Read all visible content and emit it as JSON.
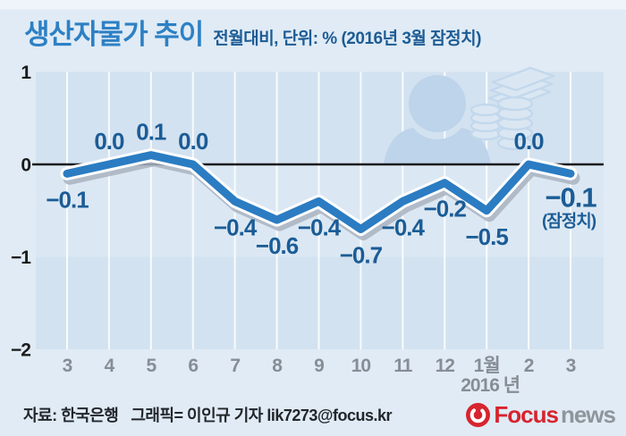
{
  "header": {
    "title": "생산자물가 추이",
    "subtitle": "전월대비, 단위: % (2016년 3월 잠정치)"
  },
  "chart_data": {
    "type": "line",
    "title": "생산자물가 추이",
    "subtitle": "전월대비, 단위: % (2016년 3월 잠정치)",
    "categories": [
      "3",
      "4",
      "5",
      "6",
      "7",
      "8",
      "9",
      "10",
      "11",
      "12",
      "1월",
      "2",
      "3"
    ],
    "values": [
      -0.1,
      0.0,
      0.1,
      0.0,
      -0.4,
      -0.6,
      -0.4,
      -0.7,
      -0.4,
      -0.2,
      -0.5,
      0.0,
      -0.1
    ],
    "point_labels": [
      "−0.1",
      "0.0",
      "0.1",
      "0.0",
      "−0.4",
      "−0.6",
      "−0.4",
      "−0.7",
      "−0.4",
      "−0.2",
      "−0.5",
      "0.0",
      "−0.1"
    ],
    "final_point_note": "(잠정치)",
    "year_label": "2016 년",
    "yticks": [
      {
        "value": 1,
        "label": "1"
      },
      {
        "value": 0,
        "label": "0"
      },
      {
        "value": -1,
        "label": "−1"
      },
      {
        "value": -2,
        "label": "−2"
      }
    ],
    "ylim": [
      -2,
      1
    ],
    "unit": "%",
    "legend": "none",
    "grid": "vertical-white-gridlines",
    "colors": {
      "line": "#2b7cc2",
      "line_casing": "#ffffff",
      "line_shadow": "#a9b3bf",
      "point_label": "#1b5c96",
      "zero_line": "#1a1a1a",
      "x_tick": "#878d95",
      "y_tick": "#1b1b1b",
      "band_dark": "#d3e2f0",
      "band_light": "#dbe8f3",
      "gridline": "#ffffff",
      "watermark": "#bdd4eb"
    }
  },
  "footer": {
    "source": "자료: 한국은행",
    "credit": "그래픽= 이인규 기자 lik7273@focus.kr",
    "logo_focus": "Focus",
    "logo_news": "news"
  }
}
